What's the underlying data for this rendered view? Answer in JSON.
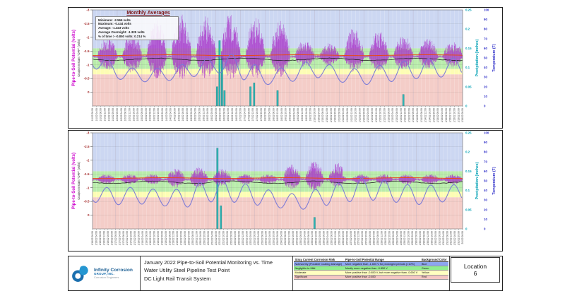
{
  "legend": {
    "title": "Monthly Averages",
    "stats": [
      "Minimum:  -2.566 volts",
      "Maximum:  -0.444 volts",
      "Average:  -1.323 volts",
      "Average Overnight:  -1.325 volts",
      "% of time > -0.850 volts: 0.214 %"
    ]
  },
  "chart_data": {
    "type": "line",
    "description": "Two stacked time-series panels: pipe-to-soil potential (purple spikes), average line (orange), overnight average line (black), temperature (blue), precipitation bars (teal), over risk-colored background bands.",
    "axes": {
      "left_title": "Pipe-to-Soil Potential (volts)",
      "left_subtitle": "Coupon Instant \"OFF\" (volts)",
      "left_ticks": [
        -3,
        -2.5,
        -2,
        -1.5,
        -1,
        -0.5,
        0
      ],
      "left_range": [
        -3,
        0.5
      ],
      "precip_title": "Precipitation (inches)",
      "precip_ticks": [
        0.25,
        0.2,
        0.15,
        0.1,
        0.05,
        0
      ],
      "precip_range": [
        0,
        0.25
      ],
      "temp_title": "Temperature (F)",
      "temp_ticks": [
        100,
        90,
        80,
        70,
        60,
        50,
        40,
        30,
        20,
        10,
        0
      ],
      "temp_range": [
        0,
        100
      ],
      "x_tick_format": "M/D/YY HH:00",
      "x_tick_interval_hours": 4
    },
    "bands": [
      {
        "from": -3.0,
        "to": -1.6,
        "color": "#ccd7f2",
        "risk": "Noteworthy"
      },
      {
        "from": -1.6,
        "to": -0.85,
        "color": "#b9ecab",
        "risk": "Negligible to Mild"
      },
      {
        "from": -0.85,
        "to": -0.65,
        "color": "#fdfdb4",
        "risk": "Moderate"
      },
      {
        "from": -0.65,
        "to": 0.5,
        "color": "#f4cdc8",
        "risk": "Significant"
      }
    ],
    "charts": [
      {
        "name": "january-first-half",
        "x_start": {
          "month": 1,
          "day": 1,
          "year": "22"
        },
        "days": 15,
        "baseline_v": -1.3,
        "average_line_v": -1.35,
        "overnight_line_v": -1.2,
        "base_fuzz": {
          "hi": -1.55,
          "lo": -1.05
        },
        "bursts": [
          {
            "d0": 0.2,
            "d1": 1.0,
            "hi": -2.0,
            "lo": -0.8
          },
          {
            "d0": 1.2,
            "d1": 2.0,
            "hi": -2.2,
            "lo": -0.7
          },
          {
            "d0": 2.2,
            "d1": 3.0,
            "hi": -2.7,
            "lo": -0.5
          },
          {
            "d0": 3.2,
            "d1": 4.0,
            "hi": -2.85,
            "lo": -0.45
          },
          {
            "d0": 4.2,
            "d1": 5.0,
            "hi": -2.8,
            "lo": -0.5
          },
          {
            "d0": 5.2,
            "d1": 6.0,
            "hi": -2.9,
            "lo": -0.45
          },
          {
            "d0": 6.2,
            "d1": 7.0,
            "hi": -2.75,
            "lo": -0.5
          },
          {
            "d0": 7.2,
            "d1": 8.0,
            "hi": -2.6,
            "lo": -0.55
          },
          {
            "d0": 8.2,
            "d1": 9.0,
            "hi": -1.9,
            "lo": -0.9
          },
          {
            "d0": 9.2,
            "d1": 10.0,
            "hi": -1.8,
            "lo": -0.95
          },
          {
            "d0": 10.2,
            "d1": 11.0,
            "hi": -2.35,
            "lo": -0.7
          },
          {
            "d0": 11.2,
            "d1": 12.0,
            "hi": -2.25,
            "lo": -0.75
          },
          {
            "d0": 12.2,
            "d1": 13.0,
            "hi": -2.1,
            "lo": -0.8
          },
          {
            "d0": 13.2,
            "d1": 14.0,
            "hi": -1.95,
            "lo": -0.85
          },
          {
            "d0": 14.2,
            "d1": 15.0,
            "hi": -1.85,
            "lo": -0.9
          }
        ],
        "temps_daily_min_max": [
          [
            40,
            60
          ],
          [
            28,
            42
          ],
          [
            25,
            38
          ],
          [
            26,
            40
          ],
          [
            30,
            45
          ],
          [
            35,
            52
          ],
          [
            28,
            55
          ],
          [
            22,
            35
          ],
          [
            25,
            42
          ],
          [
            30,
            48
          ],
          [
            25,
            40
          ],
          [
            22,
            38
          ],
          [
            25,
            45
          ],
          [
            28,
            48
          ],
          [
            30,
            50
          ]
        ],
        "precip_bars": [
          {
            "d": 5.05,
            "v": 0.05
          },
          {
            "d": 5.15,
            "v": 0.17
          },
          {
            "d": 5.25,
            "v": 0.13
          },
          {
            "d": 5.35,
            "v": 0.04
          },
          {
            "d": 6.4,
            "v": 0.05
          },
          {
            "d": 6.55,
            "v": 0.06
          },
          {
            "d": 7.5,
            "v": 0.04
          },
          {
            "d": 12.6,
            "v": 0.03
          }
        ]
      },
      {
        "name": "january-second-half",
        "x_start": {
          "month": 1,
          "day": 16,
          "year": "22"
        },
        "days": 16,
        "baseline_v": -1.3,
        "average_line_v": -1.35,
        "overnight_line_v": -1.2,
        "base_fuzz": {
          "hi": -1.5,
          "lo": -1.12
        },
        "bursts": [
          {
            "d0": 3.2,
            "d1": 4.0,
            "hi": -1.7,
            "lo": -1.0
          },
          {
            "d0": 4.2,
            "d1": 5.0,
            "hi": -1.75,
            "lo": -1.0
          },
          {
            "d0": 5.2,
            "d1": 6.0,
            "hi": -1.7,
            "lo": -1.05
          },
          {
            "d0": 8.3,
            "d1": 9.0,
            "hi": -1.85,
            "lo": -0.95
          },
          {
            "d0": 9.2,
            "d1": 10.0,
            "hi": -2.0,
            "lo": -0.9
          },
          {
            "d0": 10.2,
            "d1": 10.8,
            "hi": -1.9,
            "lo": -1.0
          }
        ],
        "temps_daily_min_max": [
          [
            28,
            45
          ],
          [
            25,
            42
          ],
          [
            26,
            44
          ],
          [
            24,
            40
          ],
          [
            22,
            42
          ],
          [
            28,
            52
          ],
          [
            28,
            50
          ],
          [
            25,
            45
          ],
          [
            22,
            38
          ],
          [
            20,
            36
          ],
          [
            24,
            44
          ],
          [
            28,
            50
          ],
          [
            30,
            55
          ],
          [
            28,
            48
          ],
          [
            25,
            45
          ],
          [
            28,
            46
          ]
        ],
        "precip_bars": [
          {
            "d": 5.4,
            "v": 0.21
          },
          {
            "d": 5.55,
            "v": 0.06
          },
          {
            "d": 9.6,
            "v": 0.03
          }
        ]
      }
    ],
    "series_colors": {
      "potential": "#a832c8",
      "average": "#e84818",
      "overnight": "#1a1a1a",
      "temperature": "#7878d8",
      "precip_fill": "#2fb5b5",
      "precip_stroke": "#17807f",
      "left_tick_label": "#a02020",
      "left_title": "#cc00cc",
      "precip_axis": "#00a0b4",
      "temp_axis": "#2c2cc8"
    }
  },
  "title_block": {
    "logo": {
      "line1": "Infinity Corrosion",
      "line2": "GROUP, INC.",
      "line3": "Corrosion Engineers"
    },
    "titles": [
      "January 2022 Pipe-to-Soil Potential Monitoring vs. Time",
      "Water Utility Steel Pipeline Test Point",
      "DC Light Rail Transit System"
    ],
    "location_label": "Location",
    "location_value": "6"
  },
  "risk_table": {
    "headers": [
      "Stray Current Corrosion Risk",
      "Pipe-to-Soil Potential Range",
      "Background Color"
    ],
    "rows": [
      {
        "risk": "Noteworthy (Possible Coating Damage)",
        "range": "More negative than -1.600 V for prolonged periods (>10%)",
        "color_name": "Blue",
        "bg": "#8ca6f0"
      },
      {
        "risk": "Negligible to Mild",
        "range": "Mostly more negative than -0.850 V",
        "color_name": "Green",
        "bg": "#90ee90"
      },
      {
        "risk": "Moderate",
        "range": "More positive than -0.850 V, but more negative than -0.650 V",
        "color_name": "Yellow",
        "bg": "#ffffc0"
      },
      {
        "risk": "Significant",
        "range": "More positive than -0.650",
        "color_name": "Red",
        "bg": "#f4c7c3"
      }
    ]
  }
}
